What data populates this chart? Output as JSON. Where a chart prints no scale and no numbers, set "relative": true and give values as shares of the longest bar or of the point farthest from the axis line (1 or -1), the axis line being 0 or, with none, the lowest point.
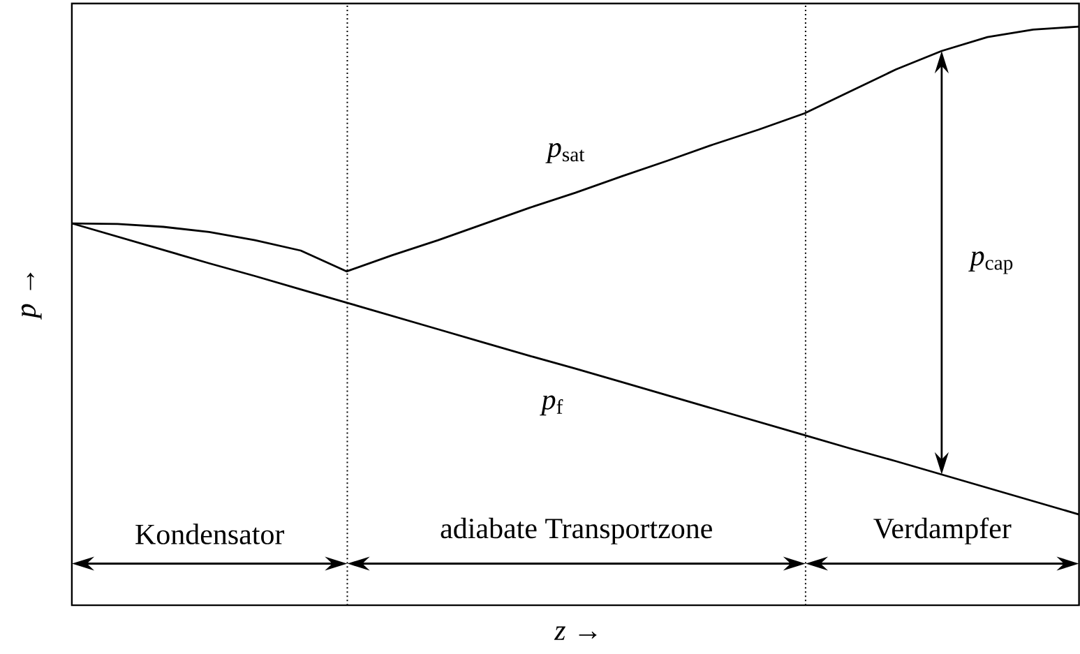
{
  "chart_data": {
    "type": "line",
    "relative": true,
    "tick_labels": false,
    "marker": "none",
    "line_style": "solid",
    "xlabel": "*z* →",
    "ylabel": "*p* →",
    "categories": [
      null,
      null,
      null,
      null,
      null,
      null,
      null,
      null,
      null,
      null,
      null,
      null,
      null,
      null,
      null,
      null,
      null,
      null,
      null,
      null,
      null,
      null,
      null
    ],
    "series": [
      {
        "name": "*p*$_{sat}$",
        "color": "#000000",
        "values": [
          0.66,
          0.659,
          0.654,
          0.645,
          0.631,
          0.613,
          0.577,
          0.605,
          0.631,
          0.659,
          0.687,
          0.713,
          0.741,
          0.768,
          0.796,
          0.822,
          0.85,
          0.888,
          0.926,
          0.958,
          0.982,
          0.995,
          1.0
        ]
      },
      {
        "name": "*p*$_{f}$",
        "color": "#000000",
        "values": [
          0.66,
          0.637,
          0.614,
          0.591,
          0.569,
          0.546,
          0.523,
          0.5,
          0.477,
          0.454,
          0.431,
          0.409,
          0.386,
          0.363,
          0.34,
          0.317,
          0.294,
          0.271,
          0.249,
          0.226,
          0.203,
          0.18,
          0.157
        ]
      }
    ],
    "annotations": [
      "Kondensator",
      "adiabate Transportzone",
      "Verdampfer",
      "*p*$_{cap}$"
    ]
  }
}
